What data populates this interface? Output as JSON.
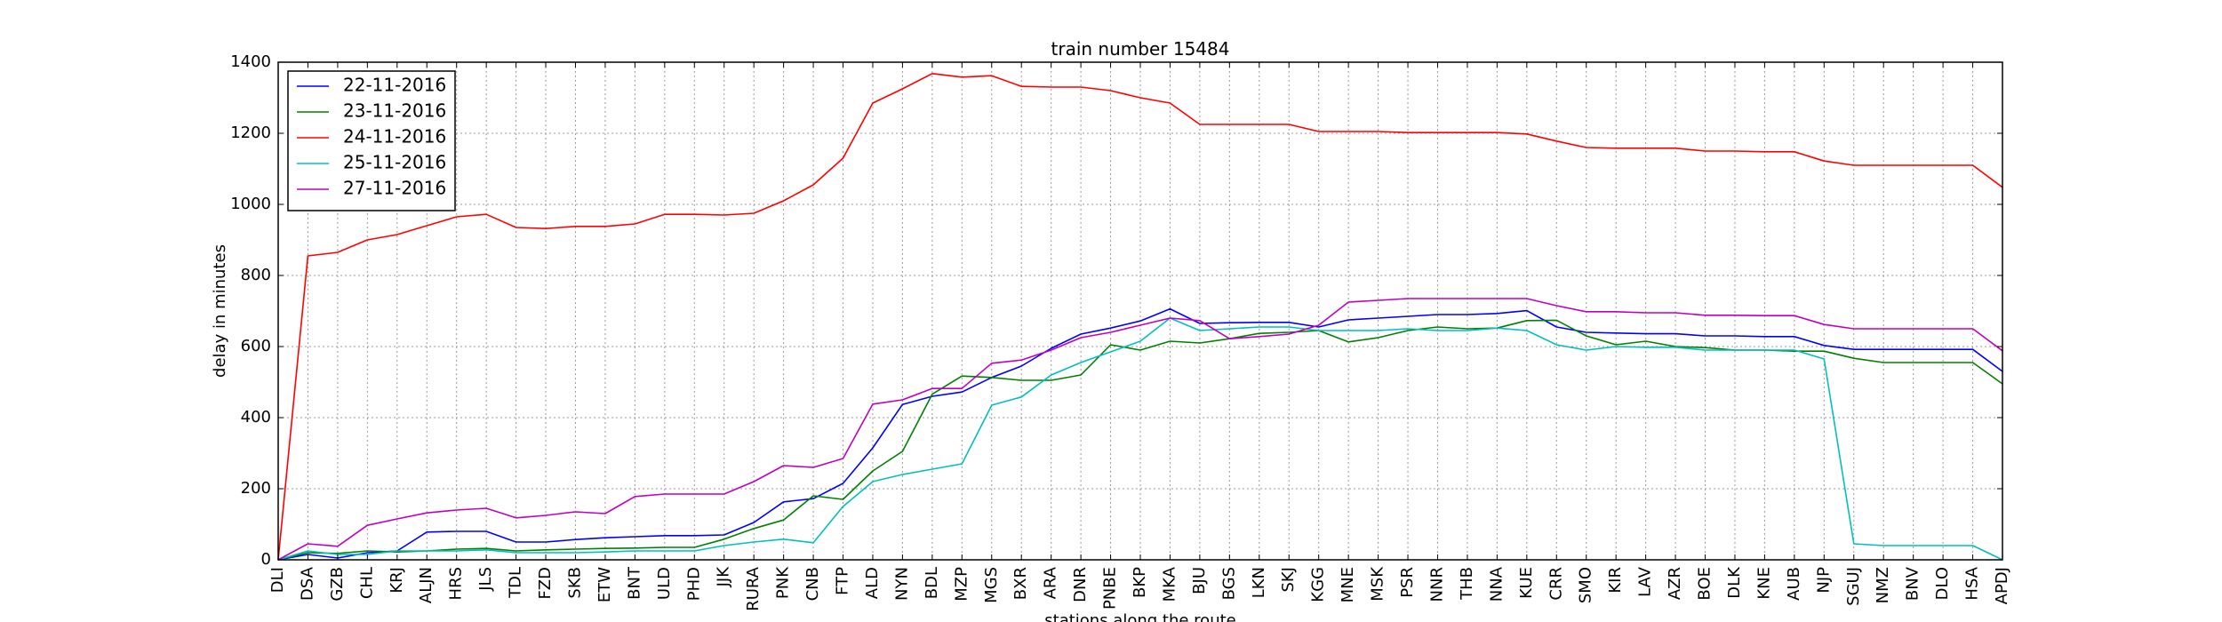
{
  "chart_data": {
    "type": "line",
    "title": "train number 15484",
    "xlabel": "stations along the route",
    "ylabel": "delay in minutes",
    "ylim": [
      0,
      1400
    ],
    "yticks": [
      0,
      200,
      400,
      600,
      800,
      1000,
      1200,
      1400
    ],
    "grid": true,
    "legend_position": "top-left",
    "categories": [
      "DLI",
      "DSA",
      "GZB",
      "CHL",
      "KRJ",
      "ALJN",
      "HRS",
      "JLS",
      "TDL",
      "FZD",
      "SKB",
      "ETW",
      "BNT",
      "ULD",
      "PHD",
      "JJK",
      "RURA",
      "PNK",
      "CNB",
      "FTP",
      "ALD",
      "NYN",
      "BDL",
      "MZP",
      "MGS",
      "BXR",
      "ARA",
      "DNR",
      "PNBE",
      "BKP",
      "MKA",
      "BJU",
      "BGS",
      "LKN",
      "SKJ",
      "KGG",
      "MNE",
      "MSK",
      "PSR",
      "NNR",
      "THB",
      "NNA",
      "KUE",
      "CRR",
      "SMO",
      "KIR",
      "LAV",
      "AZR",
      "BOE",
      "DLK",
      "KNE",
      "AUB",
      "NJP",
      "SGUJ",
      "NMZ",
      "BNV",
      "DLO",
      "HSA",
      "APDJ"
    ],
    "series": [
      {
        "name": "22-11-2016",
        "color": "#0000ff",
        "values": [
          0,
          15,
          5,
          20,
          25,
          78,
          80,
          80,
          50,
          50,
          57,
          62,
          65,
          68,
          68,
          70,
          105,
          163,
          172,
          215,
          315,
          437,
          460,
          472,
          513,
          545,
          595,
          635,
          652,
          672,
          706,
          665,
          667,
          668,
          668,
          655,
          675,
          680,
          685,
          690,
          690,
          693,
          701,
          655,
          640,
          638,
          636,
          636,
          630,
          630,
          628,
          628,
          603,
          592,
          592,
          592,
          592,
          592,
          530
        ]
      },
      {
        "name": "23-11-2016",
        "color": "#008000",
        "values": [
          0,
          20,
          18,
          25,
          22,
          25,
          30,
          32,
          25,
          28,
          30,
          32,
          33,
          35,
          35,
          58,
          88,
          112,
          180,
          170,
          250,
          305,
          466,
          517,
          513,
          505,
          505,
          520,
          605,
          590,
          615,
          610,
          622,
          637,
          640,
          645,
          613,
          625,
          645,
          655,
          650,
          652,
          673,
          674,
          630,
          605,
          615,
          600,
          597,
          590,
          590,
          587,
          587,
          567,
          555,
          555,
          555,
          555,
          495
        ]
      },
      {
        "name": "24-11-2016",
        "color": "#ff0000",
        "values": [
          0,
          855,
          865,
          900,
          915,
          940,
          965,
          972,
          935,
          932,
          938,
          938,
          945,
          972,
          972,
          970,
          975,
          1010,
          1055,
          1130,
          1285,
          1325,
          1368,
          1358,
          1362,
          1332,
          1330,
          1330,
          1320,
          1300,
          1285,
          1225,
          1225,
          1225,
          1225,
          1205,
          1205,
          1205,
          1202,
          1202,
          1202,
          1202,
          1198,
          1178,
          1160,
          1158,
          1158,
          1158,
          1150,
          1150,
          1148,
          1148,
          1122,
          1110,
          1110,
          1110,
          1110,
          1110,
          1048
        ]
      },
      {
        "name": "25-11-2016",
        "color": "#00bfbf",
        "values": [
          0,
          25,
          15,
          15,
          25,
          25,
          25,
          28,
          20,
          20,
          20,
          22,
          25,
          25,
          25,
          40,
          50,
          58,
          48,
          150,
          220,
          240,
          255,
          270,
          435,
          458,
          520,
          555,
          585,
          615,
          680,
          645,
          650,
          655,
          655,
          645,
          645,
          645,
          650,
          645,
          645,
          652,
          645,
          605,
          590,
          600,
          598,
          598,
          590,
          590,
          590,
          590,
          565,
          45,
          40,
          40,
          40,
          40,
          0
        ]
      },
      {
        "name": "27-11-2016",
        "color": "#bf00bf",
        "values": [
          0,
          45,
          38,
          97,
          115,
          132,
          140,
          145,
          118,
          125,
          135,
          130,
          178,
          185,
          185,
          185,
          220,
          265,
          260,
          285,
          438,
          450,
          482,
          482,
          553,
          562,
          590,
          625,
          640,
          660,
          680,
          673,
          622,
          628,
          635,
          660,
          725,
          730,
          735,
          735,
          735,
          735,
          735,
          715,
          698,
          698,
          695,
          695,
          688,
          688,
          687,
          687,
          662,
          650,
          650,
          650,
          650,
          650,
          588
        ]
      }
    ]
  }
}
